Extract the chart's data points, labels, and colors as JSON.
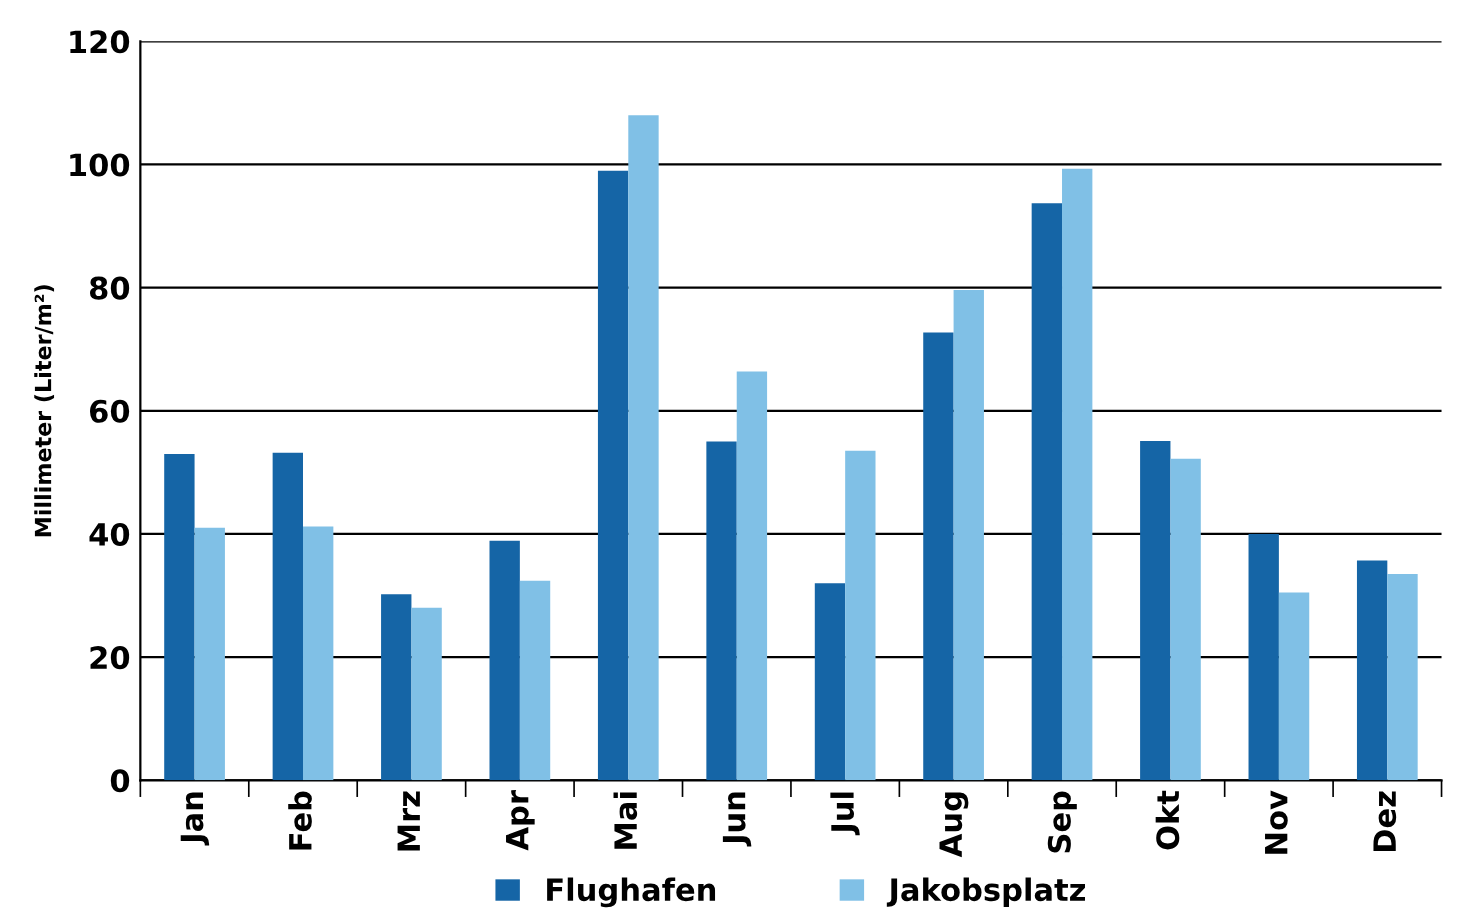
{
  "chart_data": {
    "type": "bar",
    "ylabel": "Millimeter (Liter/m²)",
    "categories": [
      "Jan",
      "Feb",
      "Mrz",
      "Apr",
      "Mai",
      "Jun",
      "Jul",
      "Aug",
      "Sep",
      "Okt",
      "Nov",
      "Dez"
    ],
    "series": [
      {
        "name": "Flughafen",
        "color": "#1565a6",
        "values": [
          53,
          53.2,
          30.2,
          38.9,
          99,
          55,
          32,
          72.7,
          93.7,
          55.1,
          40,
          35.7
        ]
      },
      {
        "name": "Jakobsplatz",
        "color": "#80c0e6",
        "values": [
          41,
          41.2,
          28,
          32.4,
          108,
          66.4,
          53.5,
          79.6,
          99.3,
          52.2,
          30.5,
          33.5
        ]
      }
    ],
    "ylim": [
      0,
      120
    ],
    "yticks": [
      0,
      20,
      40,
      60,
      80,
      100,
      120
    ],
    "grid": "y",
    "legend": "bottom"
  }
}
